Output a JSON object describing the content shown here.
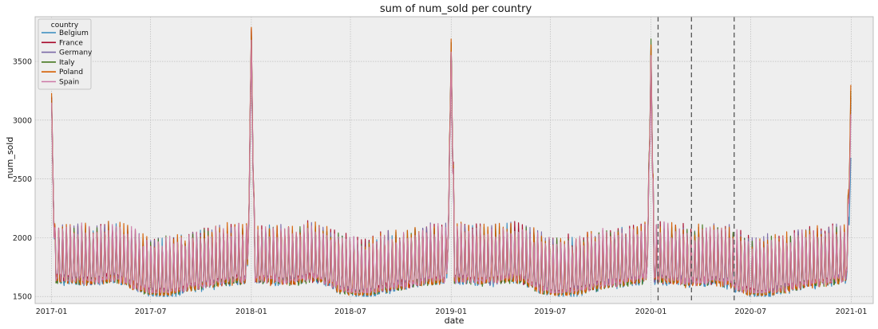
{
  "chart_data": {
    "type": "line",
    "title": "sum of num_sold per country",
    "xlabel": "date",
    "ylabel": "num_sold",
    "xlim": [
      "2016-12-02",
      "2021-02-10"
    ],
    "ylim": [
      1440,
      3880
    ],
    "x_ticks": [
      "2017-01",
      "2017-07",
      "2018-01",
      "2018-07",
      "2019-01",
      "2019-07",
      "2020-01",
      "2020-07",
      "2021-01"
    ],
    "y_ticks": [
      1500,
      2000,
      2500,
      3000,
      3500
    ],
    "grid": true,
    "legend": {
      "title": "country",
      "position": "top-left",
      "entries": [
        "Belgium",
        "France",
        "Germany",
        "Italy",
        "Poland",
        "Spain"
      ]
    },
    "series": [
      {
        "name": "Belgium",
        "color": "#348abd",
        "peaks": [
          3200,
          3760,
          3660,
          3620,
          2680
        ],
        "low": 1500,
        "base": 1680,
        "weekend_amp": 330
      },
      {
        "name": "France",
        "color": "#a60628",
        "peaks": [
          3190,
          3780,
          3640,
          3600,
          3200
        ],
        "low": 1550,
        "base": 1700,
        "weekend_amp": 340
      },
      {
        "name": "Germany",
        "color": "#7a68a6",
        "peaks": [
          3180,
          3700,
          3650,
          3580,
          3150
        ],
        "low": 1540,
        "base": 1700,
        "weekend_amp": 335
      },
      {
        "name": "Italy",
        "color": "#467821",
        "peaks": [
          3160,
          3720,
          3660,
          3690,
          3250
        ],
        "low": 1520,
        "base": 1690,
        "weekend_amp": 330
      },
      {
        "name": "Poland",
        "color": "#d55e00",
        "peaks": [
          3230,
          3790,
          3690,
          3640,
          3300
        ],
        "low": 1510,
        "base": 1690,
        "weekend_amp": 345
      },
      {
        "name": "Spain",
        "color": "#cc79a7",
        "peaks": [
          3150,
          3680,
          3580,
          3550,
          3050
        ],
        "low": 1530,
        "base": 1700,
        "weekend_amp": 330
      }
    ],
    "vlines": [
      "2020-01-14",
      "2020-03-15",
      "2020-06-01"
    ],
    "x_range": [
      "2017-01-01",
      "2020-12-31"
    ]
  }
}
